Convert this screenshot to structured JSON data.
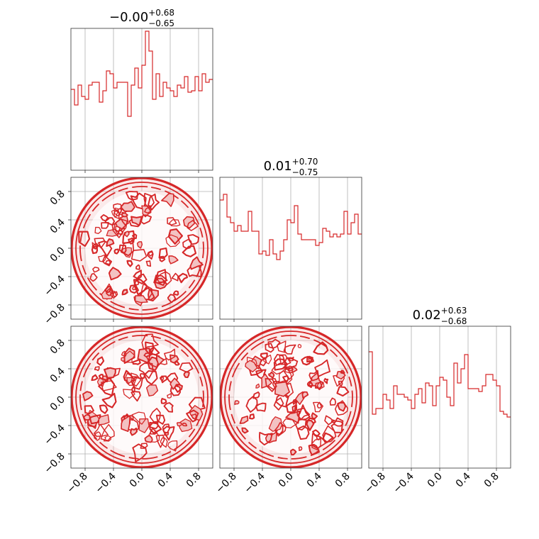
{
  "chart_data": {
    "type": "corner",
    "parameters": 3,
    "colors": {
      "series": "#d62728",
      "fill": "#f3c2c2",
      "grid": "#b0b0b0"
    },
    "tick_values": [
      -0.8,
      -0.4,
      0.0,
      0.4,
      0.8
    ],
    "tick_labels": [
      "−0.8",
      "−0.4",
      "0.0",
      "0.4",
      "0.8"
    ],
    "xlim": [
      -1.0,
      1.0
    ],
    "ylim": [
      -1.0,
      1.0
    ],
    "grid": true,
    "titles": [
      {
        "median": "−0.00",
        "plus": "+0.68",
        "minus": "−0.65"
      },
      {
        "median": "0.01",
        "plus": "+0.70",
        "minus": "−0.75"
      },
      {
        "median": "0.02",
        "plus": "+0.63",
        "minus": "−0.68"
      }
    ],
    "histograms": [
      {
        "bin_range": [
          -1.0,
          1.0
        ],
        "values": [
          0.57,
          0.46,
          0.6,
          0.52,
          0.5,
          0.6,
          0.62,
          0.62,
          0.48,
          0.56,
          0.7,
          0.68,
          0.58,
          0.62,
          0.62,
          0.62,
          0.38,
          0.6,
          0.72,
          0.58,
          0.74,
          0.98,
          0.84,
          0.5,
          0.68,
          0.52,
          0.62,
          0.58,
          0.56,
          0.52,
          0.6,
          0.58,
          0.66,
          0.55,
          0.56,
          0.66,
          0.56,
          0.68,
          0.62,
          0.64
        ]
      },
      {
        "bin_range": [
          -1.0,
          1.0
        ],
        "values": [
          0.84,
          0.88,
          0.72,
          0.68,
          0.62,
          0.66,
          0.62,
          0.62,
          0.76,
          0.62,
          0.62,
          0.46,
          0.48,
          0.45,
          0.56,
          0.46,
          0.42,
          0.48,
          0.56,
          0.7,
          0.68,
          0.8,
          0.6,
          0.56,
          0.56,
          0.56,
          0.56,
          0.52,
          0.54,
          0.64,
          0.62,
          0.58,
          0.6,
          0.58,
          0.6,
          0.76,
          0.6,
          0.68,
          0.74,
          0.6
        ]
      },
      {
        "bin_range": [
          -1.0,
          1.0
        ],
        "values": [
          0.82,
          0.38,
          0.42,
          0.42,
          0.52,
          0.48,
          0.42,
          0.58,
          0.52,
          0.52,
          0.5,
          0.48,
          0.42,
          0.52,
          0.56,
          0.46,
          0.6,
          0.58,
          0.44,
          0.58,
          0.64,
          0.62,
          0.5,
          0.44,
          0.74,
          0.6,
          0.7,
          0.8,
          0.56,
          0.56,
          0.56,
          0.54,
          0.58,
          0.66,
          0.66,
          0.62,
          0.58,
          0.4,
          0.38,
          0.36
        ]
      }
    ],
    "scatter_panels": [
      {
        "row": 1,
        "col": 0,
        "x_param": 1,
        "y_param": 2,
        "support": "unit disk"
      },
      {
        "row": 2,
        "col": 0,
        "x_param": 1,
        "y_param": 3,
        "support": "unit disk"
      },
      {
        "row": 2,
        "col": 1,
        "x_param": 2,
        "y_param": 3,
        "support": "unit disk"
      }
    ]
  }
}
